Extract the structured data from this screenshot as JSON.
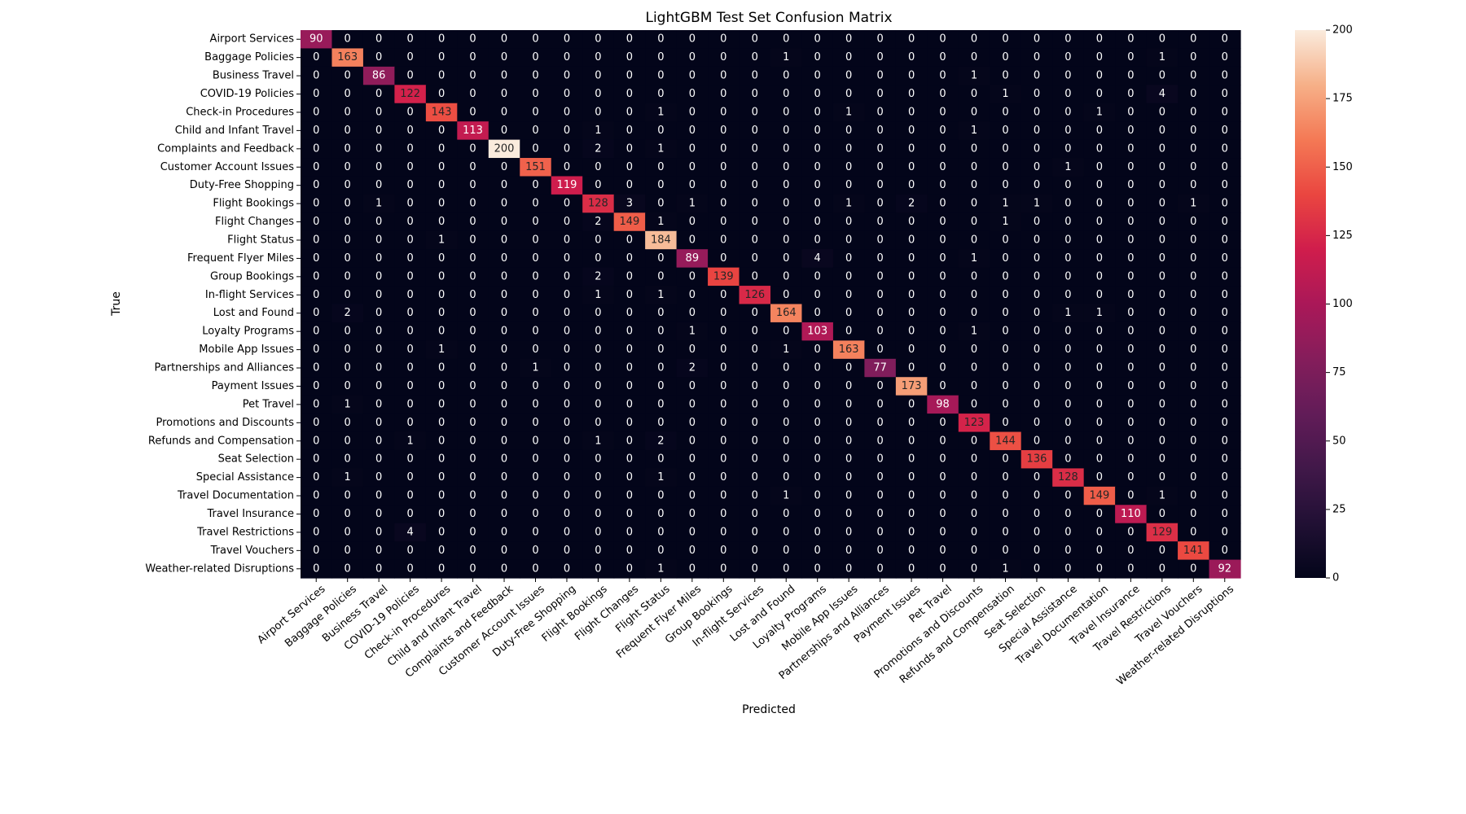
{
  "chart_data": {
    "type": "heatmap",
    "title": "LightGBM Test Set Confusion Matrix",
    "xlabel": "Predicted",
    "ylabel": "True",
    "labels": [
      "Airport Services",
      "Baggage Policies",
      "Business Travel",
      "COVID-19 Policies",
      "Check-in Procedures",
      "Child and Infant Travel",
      "Complaints and Feedback",
      "Customer Account Issues",
      "Duty-Free Shopping",
      "Flight Bookings",
      "Flight Changes",
      "Flight Status",
      "Frequent Flyer Miles",
      "Group Bookings",
      "In-flight Services",
      "Lost and Found",
      "Loyalty Programs",
      "Mobile App Issues",
      "Partnerships and Alliances",
      "Payment Issues",
      "Pet Travel",
      "Promotions and Discounts",
      "Refunds and Compensation",
      "Seat Selection",
      "Special Assistance",
      "Travel Documentation",
      "Travel Insurance",
      "Travel Restrictions",
      "Travel Vouchers",
      "Weather-related Disruptions"
    ],
    "matrix": [
      [
        90,
        0,
        0,
        0,
        0,
        0,
        0,
        0,
        0,
        0,
        0,
        0,
        0,
        0,
        0,
        0,
        0,
        0,
        0,
        0,
        0,
        0,
        0,
        0,
        0,
        0,
        0,
        0,
        0,
        0
      ],
      [
        0,
        163,
        0,
        0,
        0,
        0,
        0,
        0,
        0,
        0,
        0,
        0,
        0,
        0,
        0,
        1,
        0,
        0,
        0,
        0,
        0,
        0,
        0,
        0,
        0,
        0,
        0,
        1,
        0,
        0
      ],
      [
        0,
        0,
        86,
        0,
        0,
        0,
        0,
        0,
        0,
        0,
        0,
        0,
        0,
        0,
        0,
        0,
        0,
        0,
        0,
        0,
        0,
        1,
        0,
        0,
        0,
        0,
        0,
        0,
        0,
        0
      ],
      [
        0,
        0,
        0,
        122,
        0,
        0,
        0,
        0,
        0,
        0,
        0,
        0,
        0,
        0,
        0,
        0,
        0,
        0,
        0,
        0,
        0,
        0,
        1,
        0,
        0,
        0,
        0,
        4,
        0,
        0
      ],
      [
        0,
        0,
        0,
        0,
        143,
        0,
        0,
        0,
        0,
        0,
        0,
        1,
        0,
        0,
        0,
        0,
        0,
        1,
        0,
        0,
        0,
        0,
        0,
        0,
        0,
        1,
        0,
        0,
        0,
        0
      ],
      [
        0,
        0,
        0,
        0,
        0,
        113,
        0,
        0,
        0,
        1,
        0,
        0,
        0,
        0,
        0,
        0,
        0,
        0,
        0,
        0,
        0,
        1,
        0,
        0,
        0,
        0,
        0,
        0,
        0,
        0
      ],
      [
        0,
        0,
        0,
        0,
        0,
        0,
        200,
        0,
        0,
        2,
        0,
        1,
        0,
        0,
        0,
        0,
        0,
        0,
        0,
        0,
        0,
        0,
        0,
        0,
        0,
        0,
        0,
        0,
        0,
        0
      ],
      [
        0,
        0,
        0,
        0,
        0,
        0,
        0,
        151,
        0,
        0,
        0,
        0,
        0,
        0,
        0,
        0,
        0,
        0,
        0,
        0,
        0,
        0,
        0,
        0,
        1,
        0,
        0,
        0,
        0,
        0
      ],
      [
        0,
        0,
        0,
        0,
        0,
        0,
        0,
        0,
        119,
        0,
        0,
        0,
        0,
        0,
        0,
        0,
        0,
        0,
        0,
        0,
        0,
        0,
        0,
        0,
        0,
        0,
        0,
        0,
        0,
        0
      ],
      [
        0,
        0,
        1,
        0,
        0,
        0,
        0,
        0,
        0,
        128,
        3,
        0,
        1,
        0,
        0,
        0,
        0,
        1,
        0,
        2,
        0,
        0,
        1,
        1,
        0,
        0,
        0,
        0,
        1,
        0
      ],
      [
        0,
        0,
        0,
        0,
        0,
        0,
        0,
        0,
        0,
        2,
        149,
        1,
        0,
        0,
        0,
        0,
        0,
        0,
        0,
        0,
        0,
        0,
        1,
        0,
        0,
        0,
        0,
        0,
        0,
        0
      ],
      [
        0,
        0,
        0,
        0,
        1,
        0,
        0,
        0,
        0,
        0,
        0,
        184,
        0,
        0,
        0,
        0,
        0,
        0,
        0,
        0,
        0,
        0,
        0,
        0,
        0,
        0,
        0,
        0,
        0,
        0
      ],
      [
        0,
        0,
        0,
        0,
        0,
        0,
        0,
        0,
        0,
        0,
        0,
        0,
        89,
        0,
        0,
        0,
        4,
        0,
        0,
        0,
        0,
        1,
        0,
        0,
        0,
        0,
        0,
        0,
        0,
        0
      ],
      [
        0,
        0,
        0,
        0,
        0,
        0,
        0,
        0,
        0,
        2,
        0,
        0,
        0,
        139,
        0,
        0,
        0,
        0,
        0,
        0,
        0,
        0,
        0,
        0,
        0,
        0,
        0,
        0,
        0,
        0
      ],
      [
        0,
        0,
        0,
        0,
        0,
        0,
        0,
        0,
        0,
        1,
        0,
        1,
        0,
        0,
        126,
        0,
        0,
        0,
        0,
        0,
        0,
        0,
        0,
        0,
        0,
        0,
        0,
        0,
        0,
        0
      ],
      [
        0,
        2,
        0,
        0,
        0,
        0,
        0,
        0,
        0,
        0,
        0,
        0,
        0,
        0,
        0,
        164,
        0,
        0,
        0,
        0,
        0,
        0,
        0,
        0,
        1,
        1,
        0,
        0,
        0,
        0
      ],
      [
        0,
        0,
        0,
        0,
        0,
        0,
        0,
        0,
        0,
        0,
        0,
        0,
        1,
        0,
        0,
        0,
        103,
        0,
        0,
        0,
        0,
        1,
        0,
        0,
        0,
        0,
        0,
        0,
        0,
        0
      ],
      [
        0,
        0,
        0,
        0,
        1,
        0,
        0,
        0,
        0,
        0,
        0,
        0,
        0,
        0,
        0,
        1,
        0,
        163,
        0,
        0,
        0,
        0,
        0,
        0,
        0,
        0,
        0,
        0,
        0,
        0
      ],
      [
        0,
        0,
        0,
        0,
        0,
        0,
        0,
        1,
        0,
        0,
        0,
        0,
        2,
        0,
        0,
        0,
        0,
        0,
        77,
        0,
        0,
        0,
        0,
        0,
        0,
        0,
        0,
        0,
        0,
        0
      ],
      [
        0,
        0,
        0,
        0,
        0,
        0,
        0,
        0,
        0,
        0,
        0,
        0,
        0,
        0,
        0,
        0,
        0,
        0,
        0,
        173,
        0,
        0,
        0,
        0,
        0,
        0,
        0,
        0,
        0,
        0
      ],
      [
        0,
        1,
        0,
        0,
        0,
        0,
        0,
        0,
        0,
        0,
        0,
        0,
        0,
        0,
        0,
        0,
        0,
        0,
        0,
        0,
        98,
        0,
        0,
        0,
        0,
        0,
        0,
        0,
        0,
        0
      ],
      [
        0,
        0,
        0,
        0,
        0,
        0,
        0,
        0,
        0,
        0,
        0,
        0,
        0,
        0,
        0,
        0,
        0,
        0,
        0,
        0,
        0,
        123,
        0,
        0,
        0,
        0,
        0,
        0,
        0,
        0
      ],
      [
        0,
        0,
        0,
        1,
        0,
        0,
        0,
        0,
        0,
        1,
        0,
        2,
        0,
        0,
        0,
        0,
        0,
        0,
        0,
        0,
        0,
        0,
        144,
        0,
        0,
        0,
        0,
        0,
        0,
        0
      ],
      [
        0,
        0,
        0,
        0,
        0,
        0,
        0,
        0,
        0,
        0,
        0,
        0,
        0,
        0,
        0,
        0,
        0,
        0,
        0,
        0,
        0,
        0,
        0,
        136,
        0,
        0,
        0,
        0,
        0,
        0
      ],
      [
        0,
        1,
        0,
        0,
        0,
        0,
        0,
        0,
        0,
        0,
        0,
        1,
        0,
        0,
        0,
        0,
        0,
        0,
        0,
        0,
        0,
        0,
        0,
        0,
        128,
        0,
        0,
        0,
        0,
        0
      ],
      [
        0,
        0,
        0,
        0,
        0,
        0,
        0,
        0,
        0,
        0,
        0,
        0,
        0,
        0,
        0,
        1,
        0,
        0,
        0,
        0,
        0,
        0,
        0,
        0,
        0,
        149,
        0,
        1,
        0,
        0
      ],
      [
        0,
        0,
        0,
        0,
        0,
        0,
        0,
        0,
        0,
        0,
        0,
        0,
        0,
        0,
        0,
        0,
        0,
        0,
        0,
        0,
        0,
        0,
        0,
        0,
        0,
        0,
        110,
        0,
        0,
        0
      ],
      [
        0,
        0,
        0,
        4,
        0,
        0,
        0,
        0,
        0,
        0,
        0,
        0,
        0,
        0,
        0,
        0,
        0,
        0,
        0,
        0,
        0,
        0,
        0,
        0,
        0,
        0,
        0,
        129,
        0,
        0
      ],
      [
        0,
        0,
        0,
        0,
        0,
        0,
        0,
        0,
        0,
        0,
        0,
        0,
        0,
        0,
        0,
        0,
        0,
        0,
        0,
        0,
        0,
        0,
        0,
        0,
        0,
        0,
        0,
        0,
        141,
        0
      ],
      [
        0,
        0,
        0,
        0,
        0,
        0,
        0,
        0,
        0,
        0,
        0,
        1,
        0,
        0,
        0,
        0,
        0,
        0,
        0,
        0,
        0,
        0,
        1,
        0,
        0,
        0,
        0,
        0,
        0,
        92
      ]
    ],
    "colorbar": {
      "min": 0,
      "max": 200,
      "ticks": [
        0,
        25,
        50,
        75,
        100,
        125,
        150,
        175,
        200
      ]
    },
    "colormap": "rocket",
    "grid": false
  }
}
